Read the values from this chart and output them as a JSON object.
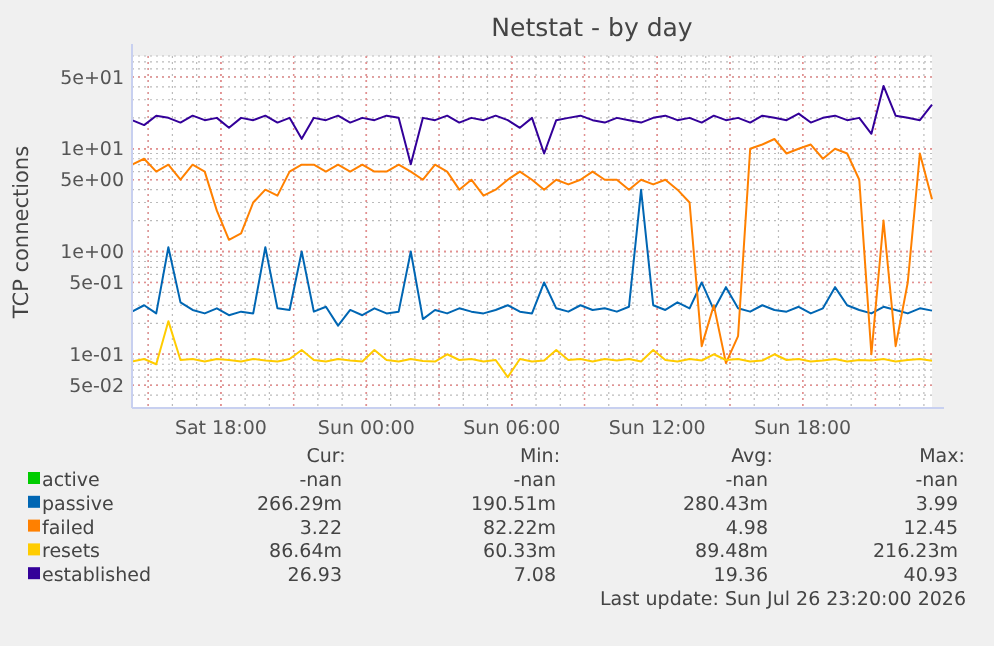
{
  "chart_data": {
    "type": "line",
    "title": "Netstat - by day",
    "ylabel": "TCP connections",
    "log": true,
    "grid": true,
    "legend": "bottom",
    "marker": "none",
    "line_style": "solid",
    "ylim": [
      0.03,
      80
    ],
    "yticks": [
      {
        "value": 50,
        "label": "5e+01"
      },
      {
        "value": 10,
        "label": "1e+01"
      },
      {
        "value": 5,
        "label": "5e+00"
      },
      {
        "value": 1,
        "label": "1e+00"
      },
      {
        "value": 0.5,
        "label": "5e-01"
      },
      {
        "value": 0.1,
        "label": "1e-01"
      },
      {
        "value": 0.05,
        "label": "5e-02"
      }
    ],
    "xlim": [
      "2026-07-25T14:20",
      "2026-07-26T23:20"
    ],
    "xticks": [
      {
        "value": "2026-07-25T18:00",
        "label": "Sat 18:00"
      },
      {
        "value": "2026-07-26T00:00",
        "label": "Sun 00:00"
      },
      {
        "value": "2026-07-26T06:00",
        "label": "Sun 06:00"
      },
      {
        "value": "2026-07-26T12:00",
        "label": "Sun 12:00"
      },
      {
        "value": "2026-07-26T18:00",
        "label": "Sun 18:00"
      }
    ],
    "x": [
      "2026-07-25T14:20",
      "2026-07-25T14:50",
      "2026-07-25T15:20",
      "2026-07-25T15:50",
      "2026-07-25T16:20",
      "2026-07-25T16:50",
      "2026-07-25T17:20",
      "2026-07-25T17:50",
      "2026-07-25T18:20",
      "2026-07-25T18:50",
      "2026-07-25T19:20",
      "2026-07-25T19:50",
      "2026-07-25T20:20",
      "2026-07-25T20:50",
      "2026-07-25T21:20",
      "2026-07-25T21:50",
      "2026-07-25T22:20",
      "2026-07-25T22:50",
      "2026-07-25T23:20",
      "2026-07-25T23:50",
      "2026-07-26T00:20",
      "2026-07-26T00:50",
      "2026-07-26T01:20",
      "2026-07-26T01:50",
      "2026-07-26T02:20",
      "2026-07-26T02:50",
      "2026-07-26T03:20",
      "2026-07-26T03:50",
      "2026-07-26T04:20",
      "2026-07-26T04:50",
      "2026-07-26T05:20",
      "2026-07-26T05:50",
      "2026-07-26T06:20",
      "2026-07-26T06:50",
      "2026-07-26T07:20",
      "2026-07-26T07:50",
      "2026-07-26T08:20",
      "2026-07-26T08:50",
      "2026-07-26T09:20",
      "2026-07-26T09:50",
      "2026-07-26T10:20",
      "2026-07-26T10:50",
      "2026-07-26T11:20",
      "2026-07-26T11:50",
      "2026-07-26T12:20",
      "2026-07-26T12:50",
      "2026-07-26T13:20",
      "2026-07-26T13:50",
      "2026-07-26T14:20",
      "2026-07-26T14:50",
      "2026-07-26T15:20",
      "2026-07-26T15:50",
      "2026-07-26T16:20",
      "2026-07-26T16:50",
      "2026-07-26T17:20",
      "2026-07-26T17:50",
      "2026-07-26T18:20",
      "2026-07-26T18:50",
      "2026-07-26T19:20",
      "2026-07-26T19:50",
      "2026-07-26T20:20",
      "2026-07-26T20:50",
      "2026-07-26T21:20",
      "2026-07-26T21:50",
      "2026-07-26T22:20",
      "2026-07-26T22:50",
      "2026-07-26T23:20"
    ],
    "series": [
      {
        "name": "active",
        "color": "#00cc00",
        "values": [
          null,
          null,
          null,
          null,
          null,
          null,
          null,
          null,
          null,
          null,
          null,
          null,
          null,
          null,
          null,
          null,
          null,
          null,
          null,
          null,
          null,
          null,
          null,
          null,
          null,
          null,
          null,
          null,
          null,
          null,
          null,
          null,
          null,
          null,
          null,
          null,
          null,
          null,
          null,
          null,
          null,
          null,
          null,
          null,
          null,
          null,
          null,
          null,
          null,
          null,
          null,
          null,
          null,
          null,
          null,
          null,
          null,
          null,
          null,
          null,
          null,
          null,
          null,
          null,
          null,
          null,
          null
        ]
      },
      {
        "name": "passive",
        "color": "#0066b3",
        "values": [
          0.26,
          0.3,
          0.25,
          1.1,
          0.32,
          0.27,
          0.25,
          0.28,
          0.24,
          0.26,
          0.25,
          1.1,
          0.28,
          0.27,
          1.0,
          0.26,
          0.29,
          0.19,
          0.27,
          0.24,
          0.28,
          0.25,
          0.26,
          1.0,
          0.22,
          0.27,
          0.25,
          0.28,
          0.26,
          0.25,
          0.27,
          0.3,
          0.26,
          0.25,
          0.5,
          0.28,
          0.26,
          0.3,
          0.27,
          0.28,
          0.26,
          0.29,
          3.99,
          0.3,
          0.27,
          0.32,
          0.28,
          0.5,
          0.27,
          0.45,
          0.28,
          0.26,
          0.3,
          0.27,
          0.26,
          0.29,
          0.25,
          0.28,
          0.45,
          0.3,
          0.27,
          0.25,
          0.29,
          0.27,
          0.25,
          0.28,
          0.266
        ]
      },
      {
        "name": "failed",
        "color": "#ff8000",
        "values": [
          7,
          8,
          6,
          7,
          5,
          7,
          6,
          2.5,
          1.3,
          1.5,
          3,
          4,
          3.5,
          6,
          7,
          7,
          6,
          7,
          6,
          7,
          6,
          6,
          7,
          6,
          5,
          7,
          6,
          4,
          5,
          3.5,
          4,
          5,
          6,
          5,
          4,
          5,
          4.5,
          5,
          6,
          5,
          5,
          4,
          5,
          4.5,
          5,
          4,
          3,
          0.12,
          0.3,
          0.082,
          0.15,
          10,
          11,
          12.45,
          9,
          10,
          11,
          8,
          10,
          9,
          5,
          0.1,
          2,
          0.12,
          0.5,
          9,
          3.22
        ]
      },
      {
        "name": "resets",
        "color": "#ffcc00",
        "values": [
          0.085,
          0.09,
          0.08,
          0.21,
          0.088,
          0.09,
          0.085,
          0.09,
          0.088,
          0.085,
          0.09,
          0.087,
          0.085,
          0.09,
          0.11,
          0.088,
          0.085,
          0.09,
          0.087,
          0.085,
          0.11,
          0.088,
          0.085,
          0.09,
          0.086,
          0.085,
          0.1,
          0.088,
          0.09,
          0.085,
          0.088,
          0.06,
          0.09,
          0.085,
          0.087,
          0.11,
          0.088,
          0.09,
          0.085,
          0.09,
          0.087,
          0.09,
          0.085,
          0.11,
          0.088,
          0.085,
          0.09,
          0.087,
          0.1,
          0.088,
          0.09,
          0.085,
          0.087,
          0.1,
          0.088,
          0.09,
          0.085,
          0.087,
          0.09,
          0.085,
          0.088,
          0.087,
          0.09,
          0.085,
          0.088,
          0.09,
          0.0866
        ]
      },
      {
        "name": "established",
        "color": "#330099",
        "values": [
          19,
          17,
          21,
          20,
          18,
          21,
          19,
          20,
          16,
          20,
          19,
          21,
          18,
          20,
          12.5,
          20,
          19,
          21,
          18,
          20,
          19,
          21,
          20,
          7.08,
          20,
          19,
          21,
          18,
          20,
          19,
          21,
          19,
          16,
          20,
          9,
          19,
          20,
          21,
          19,
          18,
          20,
          19,
          18,
          20,
          21,
          19,
          20,
          18,
          21,
          19,
          20,
          18,
          21,
          20,
          19,
          22,
          18,
          20,
          21,
          19,
          20,
          14,
          40.93,
          21,
          20,
          19,
          26.93
        ]
      }
    ],
    "annotations": [
      "Cur:",
      "Min:",
      "Avg:",
      "Max:",
      "-nan",
      "-nan",
      "-nan",
      "-nan",
      "266.29m",
      "190.51m",
      "280.43m",
      "3.99",
      "3.22",
      "82.22m",
      "4.98",
      "12.45",
      "86.64m",
      "60.33m",
      "89.48m",
      "216.23m",
      "26.93",
      "7.08",
      "19.36",
      "40.93",
      "Last update: Sun Jul 26 23:20:00 2026"
    ]
  }
}
